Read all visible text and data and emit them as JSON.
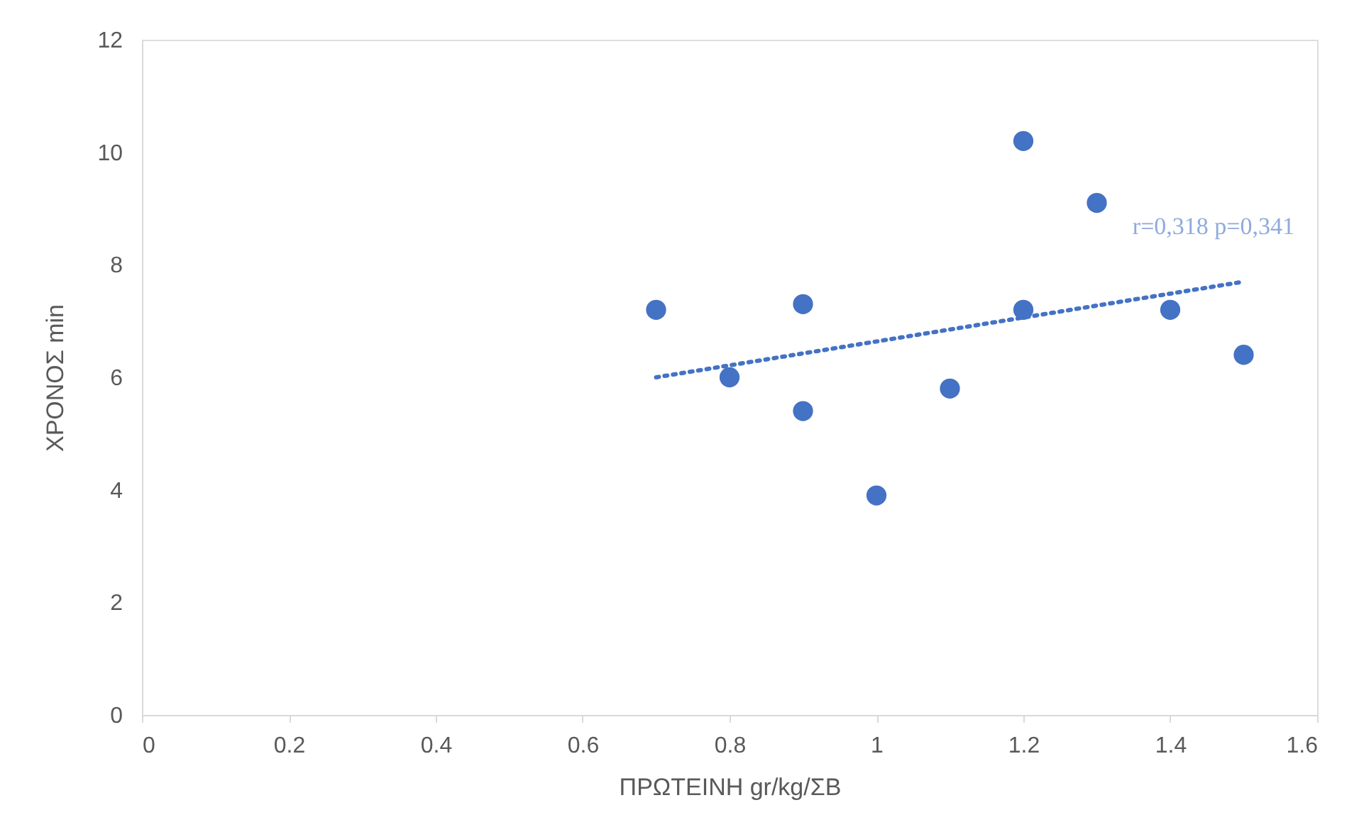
{
  "chart_data": {
    "type": "scatter",
    "xlabel": "ΠΡΩΤΕΙΝΗ gr/kg/ΣΒ",
    "ylabel": "ΧΡΟΝΟΣ min",
    "xlim": [
      0,
      1.6
    ],
    "xticks": [
      0,
      0.2,
      0.4,
      0.6,
      0.8,
      1,
      1.2,
      1.4,
      1.6
    ],
    "ylim": [
      0,
      12
    ],
    "yticks": [
      0,
      2,
      4,
      6,
      8,
      10,
      12
    ],
    "grid": false,
    "legend": false,
    "series": [
      {
        "color": "#4472c4",
        "marker": "circle",
        "x": [
          0.7,
          0.8,
          0.9,
          0.9,
          1.0,
          1.1,
          1.2,
          1.2,
          1.3,
          1.4,
          1.5
        ],
        "values": [
          7.2,
          6.0,
          7.3,
          5.4,
          3.9,
          5.8,
          10.2,
          7.2,
          9.1,
          7.2,
          6.4
        ]
      },
      {
        "type": "line",
        "color": "#4472c4",
        "line_style": "dotted",
        "x": [
          0.7,
          1.5
        ],
        "values": [
          6.0,
          7.7
        ]
      }
    ],
    "annotations": [
      "r=0,318 p=0,341"
    ]
  }
}
